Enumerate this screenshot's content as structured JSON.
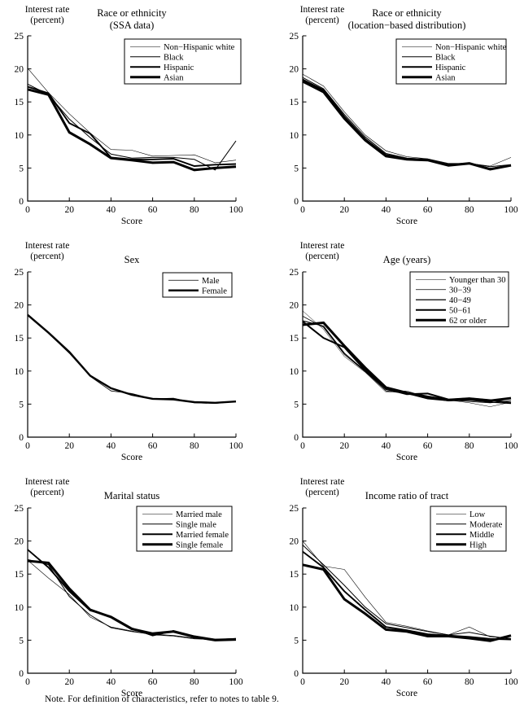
{
  "note": "Note. For definition of characteristics, refer to notes to table 9.",
  "chart_data": [
    {
      "type": "line",
      "title_lines": [
        "Race or ethnicity",
        "(SSA data)"
      ],
      "ylabel_lines": [
        "Interest rate",
        "(percent)"
      ],
      "xlabel": "Score",
      "xlim": [
        0,
        100
      ],
      "ylim": [
        0,
        25
      ],
      "xticks": [
        0,
        20,
        40,
        60,
        80,
        100
      ],
      "yticks": [
        0,
        5,
        10,
        15,
        20,
        25
      ],
      "grid": false,
      "legend_position": "upper right",
      "x": [
        0,
        10,
        20,
        30,
        40,
        50,
        60,
        70,
        80,
        90,
        100
      ],
      "series": [
        {
          "name": "Non−Hispanic white",
          "values": [
            20.1,
            16.4,
            13.2,
            10.3,
            7.8,
            7.7,
            6.8,
            6.9,
            7.0,
            5.8,
            6.2
          ]
        },
        {
          "name": "Black",
          "values": [
            17.7,
            16.1,
            12.4,
            9.6,
            7.1,
            6.5,
            6.6,
            6.6,
            6.3,
            4.7,
            9.1
          ]
        },
        {
          "name": "Hispanic",
          "values": [
            17.3,
            16.3,
            11.8,
            10.2,
            6.6,
            6.3,
            6.3,
            6.4,
            5.3,
            5.5,
            5.6
          ]
        },
        {
          "name": "Asian",
          "values": [
            16.9,
            16.1,
            10.4,
            8.6,
            6.5,
            6.2,
            5.8,
            5.9,
            4.7,
            5.0,
            5.2
          ]
        }
      ]
    },
    {
      "type": "line",
      "title_lines": [
        "Race or ethnicity",
        "(location−based distribution)"
      ],
      "ylabel_lines": [
        "Interest rate",
        "(percent)"
      ],
      "xlabel": "Score",
      "xlim": [
        0,
        100
      ],
      "ylim": [
        0,
        25
      ],
      "xticks": [
        0,
        20,
        40,
        60,
        80,
        100
      ],
      "yticks": [
        0,
        5,
        10,
        15,
        20,
        25
      ],
      "grid": false,
      "legend_position": "upper right",
      "x": [
        0,
        10,
        20,
        30,
        40,
        50,
        60,
        70,
        80,
        90,
        100
      ],
      "series": [
        {
          "name": "Non−Hispanic white",
          "values": [
            19.2,
            17.4,
            13.5,
            10.0,
            7.6,
            6.7,
            6.4,
            5.7,
            5.7,
            5.3,
            6.6
          ]
        },
        {
          "name": "Black",
          "values": [
            18.7,
            17.0,
            13.1,
            9.7,
            7.2,
            6.5,
            6.3,
            5.6,
            5.7,
            5.2,
            5.5
          ]
        },
        {
          "name": "Hispanic",
          "values": [
            18.4,
            16.8,
            12.8,
            9.4,
            7.0,
            6.4,
            6.3,
            5.5,
            5.7,
            4.9,
            5.4
          ]
        },
        {
          "name": "Asian",
          "values": [
            18.1,
            16.5,
            12.5,
            9.2,
            6.8,
            6.3,
            6.2,
            5.4,
            5.7,
            4.8,
            5.4
          ]
        }
      ]
    },
    {
      "type": "line",
      "title_lines": [
        "Sex"
      ],
      "ylabel_lines": [
        "Interest rate",
        "(percent)"
      ],
      "xlabel": "Score",
      "xlim": [
        0,
        100
      ],
      "ylim": [
        0,
        25
      ],
      "xticks": [
        0,
        20,
        40,
        60,
        80,
        100
      ],
      "yticks": [
        0,
        5,
        10,
        15,
        20,
        25
      ],
      "grid": false,
      "legend_position": "upper right",
      "x": [
        0,
        10,
        20,
        30,
        40,
        50,
        60,
        70,
        80,
        90,
        100
      ],
      "series": [
        {
          "name": "Male",
          "values": [
            18.4,
            15.7,
            12.7,
            9.2,
            7.0,
            6.6,
            5.8,
            5.9,
            5.2,
            5.1,
            5.4
          ]
        },
        {
          "name": "Female",
          "values": [
            18.5,
            15.8,
            12.9,
            9.3,
            7.4,
            6.4,
            5.8,
            5.7,
            5.3,
            5.2,
            5.4
          ]
        }
      ]
    },
    {
      "type": "line",
      "title_lines": [
        "Age (years)"
      ],
      "ylabel_lines": [
        "Interest rate",
        "(percent)"
      ],
      "xlabel": "Score",
      "xlim": [
        0,
        100
      ],
      "ylim": [
        0,
        25
      ],
      "xticks": [
        0,
        20,
        40,
        60,
        80,
        100
      ],
      "yticks": [
        0,
        5,
        10,
        15,
        20,
        25
      ],
      "grid": false,
      "legend_position": "upper right",
      "x": [
        0,
        10,
        20,
        30,
        40,
        50,
        60,
        70,
        80,
        90,
        100
      ],
      "series": [
        {
          "name": "Younger than 30",
          "values": [
            19.1,
            16.3,
            12.2,
            9.8,
            6.8,
            7.0,
            6.0,
            5.6,
            5.2,
            4.6,
            5.3
          ]
        },
        {
          "name": "30−39",
          "values": [
            18.3,
            16.6,
            12.5,
            9.9,
            7.0,
            6.6,
            5.9,
            5.6,
            5.4,
            5.2,
            5.5
          ]
        },
        {
          "name": "40−49",
          "values": [
            17.6,
            16.8,
            12.7,
            10.0,
            7.2,
            6.6,
            5.8,
            5.5,
            5.6,
            5.3,
            5.1
          ]
        },
        {
          "name": "50−61",
          "values": [
            17.5,
            15.0,
            13.6,
            10.1,
            7.3,
            6.5,
            6.6,
            5.7,
            5.9,
            5.6,
            5.2
          ]
        },
        {
          "name": "62 or older",
          "values": [
            17.0,
            17.3,
            13.8,
            10.5,
            7.5,
            6.7,
            6.1,
            5.6,
            5.8,
            5.5,
            5.9
          ]
        }
      ]
    },
    {
      "type": "line",
      "title_lines": [
        "Marital status"
      ],
      "ylabel_lines": [
        "Interest rate",
        "(percent)"
      ],
      "xlabel": "Score",
      "xlim": [
        0,
        100
      ],
      "ylim": [
        0,
        25
      ],
      "xticks": [
        0,
        20,
        40,
        60,
        80,
        100
      ],
      "yticks": [
        0,
        5,
        10,
        15,
        20,
        25
      ],
      "grid": false,
      "legend_position": "upper right",
      "x": [
        0,
        10,
        20,
        30,
        40,
        50,
        60,
        70,
        80,
        90,
        100
      ],
      "series": [
        {
          "name": "Married male",
          "values": [
            17.1,
            14.4,
            11.9,
            8.5,
            7.0,
            6.4,
            5.8,
            5.6,
            5.2,
            5.1,
            5.3
          ]
        },
        {
          "name": "Single male",
          "values": [
            17.2,
            16.4,
            11.6,
            8.8,
            6.9,
            6.3,
            5.9,
            5.7,
            5.3,
            5.0,
            5.2
          ]
        },
        {
          "name": "Married female",
          "values": [
            18.7,
            16.0,
            12.4,
            9.5,
            8.6,
            6.8,
            5.7,
            6.4,
            5.6,
            5.1,
            5.2
          ]
        },
        {
          "name": "Single female",
          "values": [
            17.0,
            16.7,
            12.8,
            9.6,
            8.5,
            6.7,
            6.0,
            6.3,
            5.5,
            5.0,
            5.1
          ]
        }
      ]
    },
    {
      "type": "line",
      "title_lines": [
        "Income ratio of tract"
      ],
      "ylabel_lines": [
        "Interest rate",
        "(percent)"
      ],
      "xlabel": "Score",
      "xlim": [
        0,
        100
      ],
      "ylim": [
        0,
        25
      ],
      "xticks": [
        0,
        20,
        40,
        60,
        80,
        100
      ],
      "yticks": [
        0,
        5,
        10,
        15,
        20,
        25
      ],
      "grid": false,
      "legend_position": "upper right",
      "x": [
        0,
        10,
        20,
        30,
        40,
        50,
        60,
        70,
        80,
        90,
        100
      ],
      "series": [
        {
          "name": "Low",
          "values": [
            20.0,
            16.2,
            15.7,
            11.5,
            7.7,
            7.1,
            6.4,
            5.8,
            7.0,
            5.5,
            5.3
          ]
        },
        {
          "name": "Moderate",
          "values": [
            19.4,
            16.4,
            13.3,
            10.0,
            7.5,
            6.9,
            6.3,
            5.8,
            6.2,
            5.6,
            5.2
          ]
        },
        {
          "name": "Middle",
          "values": [
            18.4,
            16.0,
            12.4,
            9.6,
            7.0,
            6.5,
            5.9,
            5.7,
            5.5,
            5.2,
            5.1
          ]
        },
        {
          "name": "High",
          "values": [
            16.4,
            15.7,
            11.2,
            9.0,
            6.6,
            6.3,
            5.6,
            5.6,
            5.3,
            4.9,
            5.7
          ]
        }
      ]
    }
  ]
}
